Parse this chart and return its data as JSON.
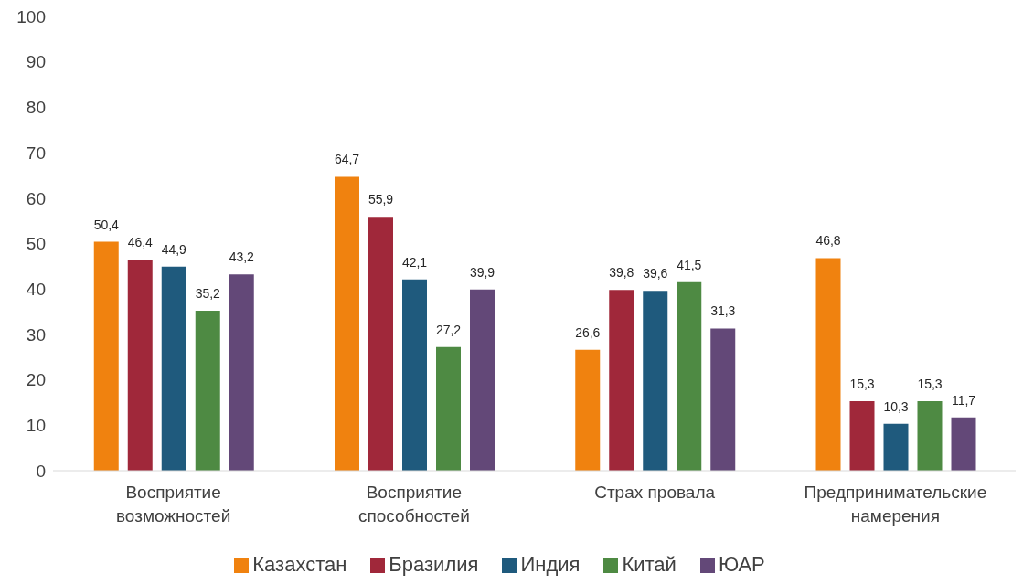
{
  "chart_data": {
    "type": "bar",
    "categories": [
      "Восприятие возможностей",
      "Восприятие способностей",
      "Страх провала",
      "Предпринимательские намерения"
    ],
    "series": [
      {
        "name": "Казахстан",
        "color": "#f0820f",
        "values": [
          50.4,
          64.7,
          26.6,
          46.8
        ],
        "value_labels": [
          "50,4",
          "64,7",
          "26,6",
          "46,8"
        ]
      },
      {
        "name": "Бразилия",
        "color": "#a0283a",
        "values": [
          46.4,
          55.9,
          39.8,
          15.3
        ],
        "value_labels": [
          "46,4",
          "55,9",
          "39,8",
          "15,3"
        ]
      },
      {
        "name": "Индия",
        "color": "#1f5a7d",
        "values": [
          44.9,
          42.1,
          39.6,
          10.3
        ],
        "value_labels": [
          "44,9",
          "42,1",
          "39,6",
          "10,3"
        ]
      },
      {
        "name": "Китай",
        "color": "#4e8a43",
        "values": [
          35.2,
          27.2,
          41.5,
          15.3
        ],
        "value_labels": [
          "35,2",
          "27,2",
          "41,5",
          "15,3"
        ]
      },
      {
        "name": "ЮАР",
        "color": "#634878",
        "values": [
          43.2,
          39.9,
          31.3,
          11.7
        ],
        "value_labels": [
          "43,2",
          "39,9",
          "31,3",
          "11,7"
        ]
      }
    ],
    "ylim": [
      0,
      100
    ],
    "yticks": [
      0,
      10,
      20,
      30,
      40,
      50,
      60,
      70,
      80,
      90,
      100
    ],
    "grid": false,
    "legend": "bottom"
  }
}
